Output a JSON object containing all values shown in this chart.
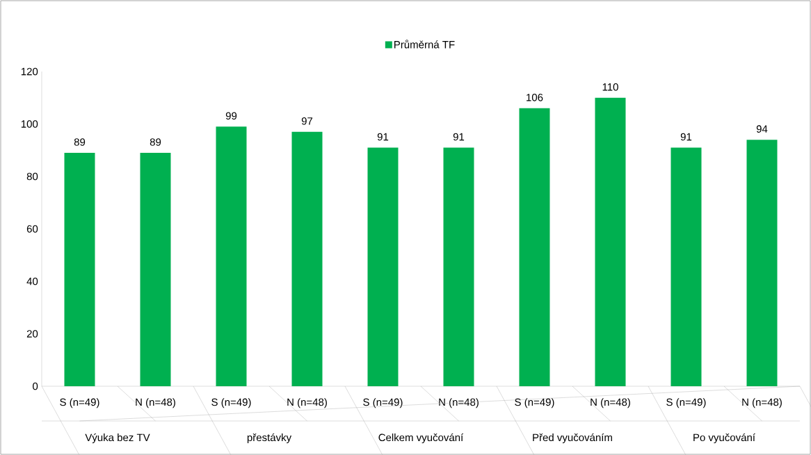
{
  "chart_data": {
    "type": "bar",
    "categories": [
      "S (n=49)",
      "N (n=48)",
      "S (n=49)",
      "N (n=48)",
      "S (n=49)",
      "N (n=48)",
      "S (n=49)",
      "N (n=48)",
      "S (n=49)",
      "N (n=48)"
    ],
    "series": [
      {
        "name": "Průměrná TF",
        "color": "#00b050",
        "values": [
          89,
          89,
          99,
          97,
          91,
          91,
          106,
          110,
          91,
          94
        ]
      }
    ],
    "annotations": [
      "Výuka bez TV",
      "přestávky",
      "Celkem vyučování",
      "Před vyučováním",
      "Po vyučování"
    ],
    "ylim": [
      0,
      120
    ],
    "yticks": [
      0,
      20,
      40,
      60,
      80,
      100,
      120
    ],
    "data_labels": true,
    "legend": "top",
    "grid": false
  }
}
